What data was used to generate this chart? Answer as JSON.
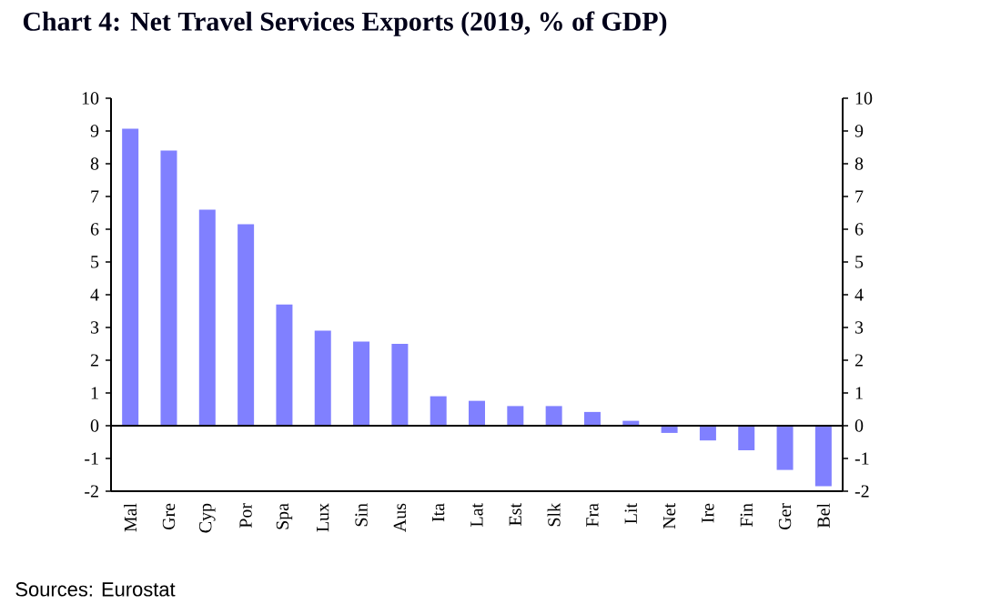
{
  "chart_data": {
    "type": "bar",
    "title": "Chart 4: Net Travel Services Exports (2019, % of GDP)",
    "categories": [
      "Mal",
      "Gre",
      "Cyp",
      "Por",
      "Spa",
      "Lux",
      "Sin",
      "Aus",
      "Ita",
      "Lat",
      "Est",
      "Slk",
      "Fra",
      "Lit",
      "Net",
      "Ire",
      "Fin",
      "Ger",
      "Bel"
    ],
    "values": [
      9.07,
      8.4,
      6.6,
      6.15,
      3.7,
      2.9,
      2.57,
      2.5,
      0.9,
      0.76,
      0.6,
      0.6,
      0.42,
      0.15,
      -0.22,
      -0.45,
      -0.75,
      -1.35,
      -1.85
    ],
    "color": "#8080ff",
    "ylim": [
      -2,
      10
    ],
    "yticks": [
      -2,
      -1,
      0,
      1,
      2,
      3,
      4,
      5,
      6,
      7,
      8,
      9,
      10
    ],
    "y2lim": [
      -2,
      10
    ],
    "y2ticks": [
      -2,
      -1,
      0,
      1,
      2,
      3,
      4,
      5,
      6,
      7,
      8,
      9,
      10
    ],
    "ref_lines": [
      {
        "axis": "y",
        "value": 0,
        "color": "#000000"
      }
    ],
    "annotations": [
      "Sources: Eurostat"
    ]
  }
}
